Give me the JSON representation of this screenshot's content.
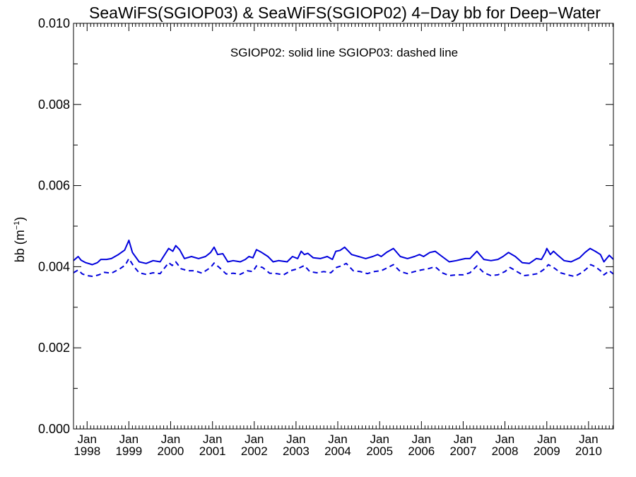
{
  "chart_data": {
    "type": "line",
    "title": "SeaWiFS(SGIOP03) & SeaWiFS(SGIOP02) 4−Day bb for Deep−Water",
    "ylabel": "bb (m",
    "ylabel_sup": "−1",
    "ylabel_close": ")",
    "xlabel": "",
    "annotation": "SGIOP02: solid line   SGIOP03: dashed line",
    "ylim": [
      0.0,
      0.01
    ],
    "xlim": [
      "1997-09-04",
      "2010-08-06"
    ],
    "grid": false,
    "yticks": [
      "0.000",
      "0.002",
      "0.004",
      "0.006",
      "0.008",
      "0.010"
    ],
    "xticks": [
      {
        "date": "1998-01-01",
        "month": "Jan",
        "year": "1998"
      },
      {
        "date": "1999-01-01",
        "month": "Jan",
        "year": "1999"
      },
      {
        "date": "2000-01-01",
        "month": "Jan",
        "year": "2000"
      },
      {
        "date": "2001-01-01",
        "month": "Jan",
        "year": "2001"
      },
      {
        "date": "2002-01-01",
        "month": "Jan",
        "year": "2002"
      },
      {
        "date": "2003-01-01",
        "month": "Jan",
        "year": "2003"
      },
      {
        "date": "2004-01-01",
        "month": "Jan",
        "year": "2004"
      },
      {
        "date": "2005-01-01",
        "month": "Jan",
        "year": "2005"
      },
      {
        "date": "2006-01-01",
        "month": "Jan",
        "year": "2006"
      },
      {
        "date": "2007-01-01",
        "month": "Jan",
        "year": "2007"
      },
      {
        "date": "2008-01-01",
        "month": "Jan",
        "year": "2008"
      },
      {
        "date": "2009-01-01",
        "month": "Jan",
        "year": "2009"
      },
      {
        "date": "2010-01-01",
        "month": "Jan",
        "year": "2010"
      }
    ],
    "series": [
      {
        "style": "solid",
        "color": "#0000dd",
        "points": [
          [
            "1997-09-04",
            0.00415
          ],
          [
            "1997-10-15",
            0.00425
          ],
          [
            "1997-11-10",
            0.00416
          ],
          [
            "1997-12-20",
            0.0041
          ],
          [
            "1998-02-15",
            0.00405
          ],
          [
            "1998-04-01",
            0.0041
          ],
          [
            "1998-05-01",
            0.00418
          ],
          [
            "1998-06-20",
            0.00418
          ],
          [
            "1998-08-01",
            0.0042
          ],
          [
            "1998-10-01",
            0.0043
          ],
          [
            "1998-11-25",
            0.00441
          ],
          [
            "1999-01-01",
            0.00465
          ],
          [
            "1999-02-01",
            0.00435
          ],
          [
            "1999-04-01",
            0.00412
          ],
          [
            "1999-06-01",
            0.00408
          ],
          [
            "1999-08-01",
            0.00415
          ],
          [
            "1999-10-01",
            0.00412
          ],
          [
            "1999-12-15",
            0.00445
          ],
          [
            "2000-01-20",
            0.00438
          ],
          [
            "2000-02-15",
            0.00452
          ],
          [
            "2000-03-20",
            0.00442
          ],
          [
            "2000-05-01",
            0.0042
          ],
          [
            "2000-07-01",
            0.00425
          ],
          [
            "2000-09-01",
            0.0042
          ],
          [
            "2000-11-01",
            0.00425
          ],
          [
            "2000-12-15",
            0.00435
          ],
          [
            "2001-01-15",
            0.00448
          ],
          [
            "2001-02-15",
            0.0043
          ],
          [
            "2001-04-01",
            0.00432
          ],
          [
            "2001-05-15",
            0.00412
          ],
          [
            "2001-07-01",
            0.00415
          ],
          [
            "2001-09-01",
            0.00412
          ],
          [
            "2001-10-15",
            0.00418
          ],
          [
            "2001-11-15",
            0.00425
          ],
          [
            "2001-12-20",
            0.00422
          ],
          [
            "2002-01-20",
            0.00442
          ],
          [
            "2002-03-01",
            0.00436
          ],
          [
            "2002-05-01",
            0.00425
          ],
          [
            "2002-06-15",
            0.00412
          ],
          [
            "2002-08-01",
            0.00415
          ],
          [
            "2002-10-15",
            0.00412
          ],
          [
            "2002-12-01",
            0.00425
          ],
          [
            "2003-01-15",
            0.0042
          ],
          [
            "2003-02-15",
            0.00438
          ],
          [
            "2003-03-15",
            0.0043
          ],
          [
            "2003-04-15",
            0.00433
          ],
          [
            "2003-06-01",
            0.00422
          ],
          [
            "2003-08-01",
            0.0042
          ],
          [
            "2003-10-01",
            0.00425
          ],
          [
            "2003-11-15",
            0.00418
          ],
          [
            "2003-12-15",
            0.00438
          ],
          [
            "2004-01-20",
            0.0044
          ],
          [
            "2004-03-01",
            0.00448
          ],
          [
            "2004-05-01",
            0.0043
          ],
          [
            "2004-07-01",
            0.00425
          ],
          [
            "2004-09-01",
            0.0042
          ],
          [
            "2004-11-01",
            0.00425
          ],
          [
            "2004-12-15",
            0.0043
          ],
          [
            "2005-01-15",
            0.00425
          ],
          [
            "2005-03-01",
            0.00435
          ],
          [
            "2005-05-01",
            0.00445
          ],
          [
            "2005-07-01",
            0.00425
          ],
          [
            "2005-09-01",
            0.0042
          ],
          [
            "2005-11-01",
            0.00425
          ],
          [
            "2005-12-15",
            0.0043
          ],
          [
            "2006-01-20",
            0.00425
          ],
          [
            "2006-03-15",
            0.00435
          ],
          [
            "2006-05-01",
            0.00438
          ],
          [
            "2006-07-01",
            0.00425
          ],
          [
            "2006-09-01",
            0.00412
          ],
          [
            "2006-11-01",
            0.00415
          ],
          [
            "2006-12-15",
            0.00418
          ],
          [
            "2007-01-20",
            0.0042
          ],
          [
            "2007-03-01",
            0.0042
          ],
          [
            "2007-05-01",
            0.00438
          ],
          [
            "2007-07-01",
            0.00418
          ],
          [
            "2007-09-01",
            0.00415
          ],
          [
            "2007-11-01",
            0.00418
          ],
          [
            "2007-12-15",
            0.00425
          ],
          [
            "2008-02-01",
            0.00435
          ],
          [
            "2008-04-01",
            0.00425
          ],
          [
            "2008-06-01",
            0.0041
          ],
          [
            "2008-08-01",
            0.00408
          ],
          [
            "2008-10-01",
            0.0042
          ],
          [
            "2008-11-15",
            0.00418
          ],
          [
            "2008-12-20",
            0.00435
          ],
          [
            "2009-01-01",
            0.00445
          ],
          [
            "2009-02-01",
            0.0043
          ],
          [
            "2009-03-01",
            0.00438
          ],
          [
            "2009-04-01",
            0.0043
          ],
          [
            "2009-06-01",
            0.00415
          ],
          [
            "2009-08-01",
            0.00412
          ],
          [
            "2009-10-15",
            0.00422
          ],
          [
            "2009-12-01",
            0.00435
          ],
          [
            "2010-01-15",
            0.00445
          ],
          [
            "2010-03-01",
            0.00438
          ],
          [
            "2010-04-15",
            0.0043
          ],
          [
            "2010-05-15",
            0.00412
          ],
          [
            "2010-07-01",
            0.00428
          ],
          [
            "2010-08-06",
            0.00418
          ]
        ]
      },
      {
        "style": "dashed",
        "color": "#0000dd",
        "points": [
          [
            "1997-09-04",
            0.00385
          ],
          [
            "1997-10-15",
            0.00392
          ],
          [
            "1997-11-20",
            0.00382
          ],
          [
            "1998-01-01",
            0.00378
          ],
          [
            "1998-02-20",
            0.00376
          ],
          [
            "1998-04-15",
            0.0038
          ],
          [
            "1998-06-01",
            0.00386
          ],
          [
            "1998-08-01",
            0.00384
          ],
          [
            "1998-10-15",
            0.00395
          ],
          [
            "1998-12-01",
            0.00404
          ],
          [
            "1999-01-01",
            0.0042
          ],
          [
            "1999-02-15",
            0.004
          ],
          [
            "1999-04-01",
            0.00385
          ],
          [
            "1999-06-01",
            0.00381
          ],
          [
            "1999-08-01",
            0.00385
          ],
          [
            "1999-10-01",
            0.00383
          ],
          [
            "1999-12-15",
            0.0041
          ],
          [
            "2000-01-15",
            0.00403
          ],
          [
            "2000-02-15",
            0.00412
          ],
          [
            "2000-04-01",
            0.00395
          ],
          [
            "2000-06-01",
            0.0039
          ],
          [
            "2000-08-01",
            0.0039
          ],
          [
            "2000-10-01",
            0.00384
          ],
          [
            "2000-12-15",
            0.00398
          ],
          [
            "2001-01-15",
            0.00409
          ],
          [
            "2001-03-01",
            0.00398
          ],
          [
            "2001-05-01",
            0.00382
          ],
          [
            "2001-07-01",
            0.00384
          ],
          [
            "2001-09-01",
            0.00381
          ],
          [
            "2001-11-01",
            0.0039
          ],
          [
            "2001-12-20",
            0.00388
          ],
          [
            "2002-01-20",
            0.00402
          ],
          [
            "2002-03-15",
            0.00398
          ],
          [
            "2002-05-15",
            0.00384
          ],
          [
            "2002-07-15",
            0.00383
          ],
          [
            "2002-09-15",
            0.0038
          ],
          [
            "2002-11-15",
            0.0039
          ],
          [
            "2003-01-15",
            0.00395
          ],
          [
            "2003-03-15",
            0.00403
          ],
          [
            "2003-05-01",
            0.00388
          ],
          [
            "2003-07-01",
            0.00385
          ],
          [
            "2003-09-01",
            0.00388
          ],
          [
            "2003-11-01",
            0.00385
          ],
          [
            "2003-12-20",
            0.00398
          ],
          [
            "2004-02-01",
            0.00402
          ],
          [
            "2004-03-15",
            0.00408
          ],
          [
            "2004-05-15",
            0.0039
          ],
          [
            "2004-07-15",
            0.00388
          ],
          [
            "2004-09-15",
            0.00383
          ],
          [
            "2004-11-15",
            0.00388
          ],
          [
            "2005-01-15",
            0.0039
          ],
          [
            "2005-03-15",
            0.00398
          ],
          [
            "2005-05-01",
            0.00405
          ],
          [
            "2005-07-01",
            0.00388
          ],
          [
            "2005-09-01",
            0.00383
          ],
          [
            "2005-11-01",
            0.00388
          ],
          [
            "2006-01-01",
            0.00392
          ],
          [
            "2006-03-01",
            0.00395
          ],
          [
            "2006-05-01",
            0.004
          ],
          [
            "2006-07-01",
            0.00385
          ],
          [
            "2006-09-01",
            0.00378
          ],
          [
            "2006-11-01",
            0.0038
          ],
          [
            "2007-01-01",
            0.0038
          ],
          [
            "2007-03-01",
            0.00385
          ],
          [
            "2007-05-01",
            0.00402
          ],
          [
            "2007-07-01",
            0.00385
          ],
          [
            "2007-09-01",
            0.00378
          ],
          [
            "2007-11-01",
            0.0038
          ],
          [
            "2008-01-01",
            0.00388
          ],
          [
            "2008-02-15",
            0.00398
          ],
          [
            "2008-04-15",
            0.00388
          ],
          [
            "2008-06-15",
            0.00378
          ],
          [
            "2008-08-15",
            0.0038
          ],
          [
            "2008-10-15",
            0.00383
          ],
          [
            "2008-12-15",
            0.00395
          ],
          [
            "2009-01-15",
            0.00405
          ],
          [
            "2009-03-01",
            0.00398
          ],
          [
            "2009-05-01",
            0.00385
          ],
          [
            "2009-07-01",
            0.0038
          ],
          [
            "2009-09-01",
            0.00376
          ],
          [
            "2009-11-01",
            0.00385
          ],
          [
            "2009-12-15",
            0.00395
          ],
          [
            "2010-01-20",
            0.00405
          ],
          [
            "2010-03-01",
            0.004
          ],
          [
            "2010-04-15",
            0.0039
          ],
          [
            "2010-05-15",
            0.0038
          ],
          [
            "2010-07-01",
            0.0039
          ],
          [
            "2010-08-06",
            0.00382
          ]
        ]
      }
    ]
  }
}
